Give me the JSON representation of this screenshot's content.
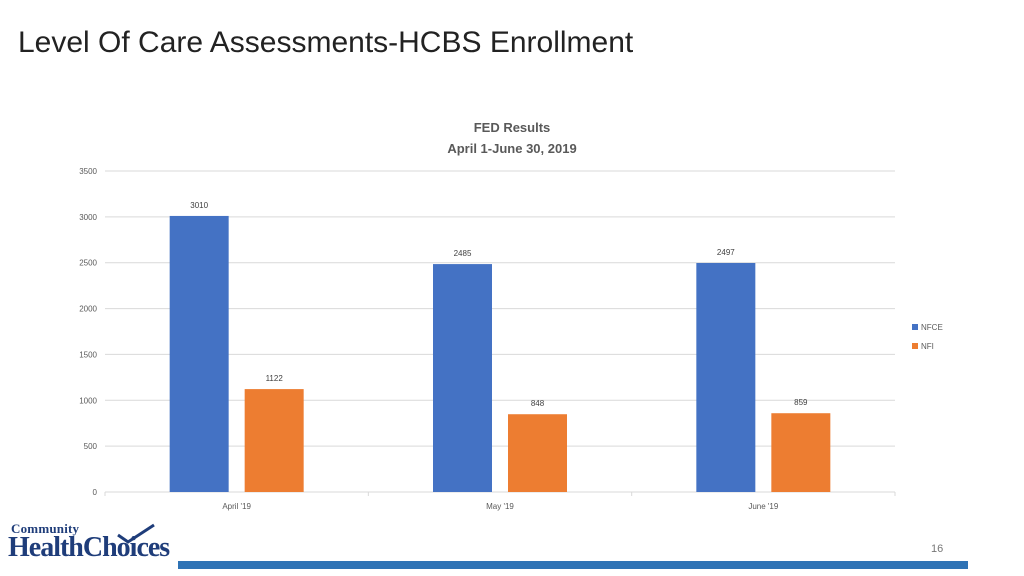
{
  "slide": {
    "title": "Level Of Care Assessments-HCBS Enrollment",
    "page_number": "16"
  },
  "logo": {
    "line1": "Community",
    "line2": "HealthChoices"
  },
  "colors": {
    "NFCE": "#4472c4",
    "NFI": "#ed7d31",
    "grid": "#d9d9d9",
    "bar_accent": "#2f73b5"
  },
  "chart_data": {
    "type": "bar",
    "title": "FED Results",
    "subtitle": "April 1-June 30, 2019",
    "categories": [
      "April '19",
      "May '19",
      "June '19"
    ],
    "series": [
      {
        "name": "NFCE",
        "values": [
          3010,
          2485,
          2497
        ]
      },
      {
        "name": "NFI",
        "values": [
          1122,
          848,
          859
        ]
      }
    ],
    "ylim": [
      0,
      3500
    ],
    "yticks": [
      0,
      500,
      1000,
      1500,
      2000,
      2500,
      3000,
      3500
    ],
    "grid": true,
    "legend": "right",
    "data_labels": true
  }
}
